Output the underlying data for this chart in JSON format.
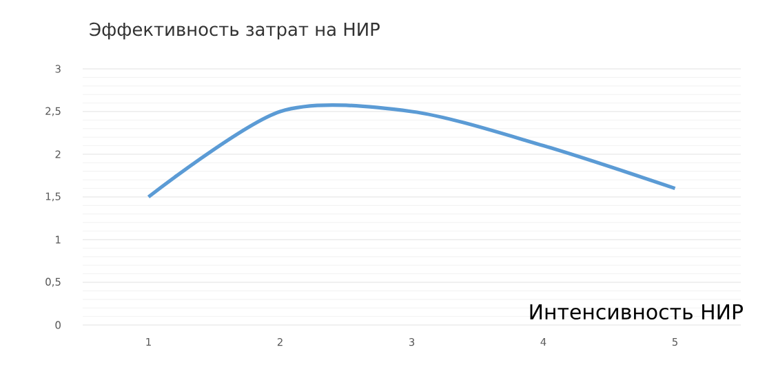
{
  "chart_data": {
    "type": "line",
    "ylabel": "Эффективность затрат на НИР",
    "xlabel": "Интенсивность НИР",
    "categories": [
      "1",
      "2",
      "3",
      "4",
      "5"
    ],
    "series": [
      {
        "color": "#5b9bd5",
        "values": [
          1.5,
          2.5,
          2.5,
          2.1,
          1.6
        ]
      }
    ],
    "ylim": [
      0,
      3
    ],
    "yticks": [
      0,
      {
        "value": 0.5,
        "label": "0,5"
      },
      1,
      {
        "value": 1.5,
        "label": "1,5"
      },
      2,
      {
        "value": 2.5,
        "label": "2,5"
      },
      3
    ],
    "grid": "y",
    "marker": "none",
    "line_style": "solid"
  }
}
